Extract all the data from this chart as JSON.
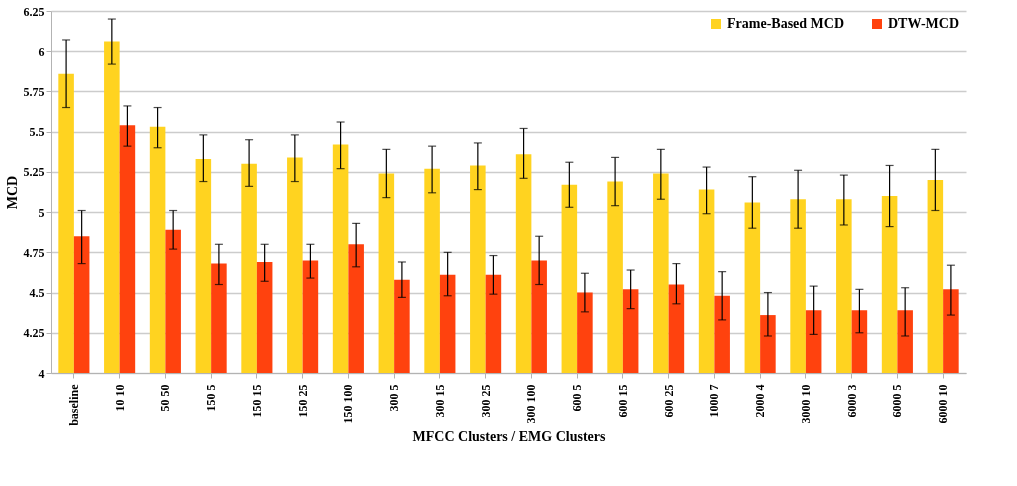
{
  "chart_data": {
    "type": "bar",
    "xlabel": "MFCC Clusters / EMG Clusters",
    "ylabel": "MCD",
    "categories": [
      "baseline",
      "10 10",
      "50 50",
      "150 5",
      "150 15",
      "150 25",
      "150 100",
      "300 5",
      "300 15",
      "300 25",
      "300 100",
      "600 5",
      "600 15",
      "600 25",
      "1000 7",
      "2000 4",
      "3000 10",
      "6000 3",
      "6000 5",
      "6000 10"
    ],
    "series": [
      {
        "name": "Frame-Based MCD",
        "color": "#ffd320",
        "values": [
          5.86,
          6.06,
          5.53,
          5.33,
          5.3,
          5.34,
          5.42,
          5.24,
          5.27,
          5.29,
          5.36,
          5.17,
          5.19,
          5.24,
          5.14,
          5.06,
          5.08,
          5.08,
          5.1,
          5.2
        ],
        "errors": [
          [
            5.65,
            6.07
          ],
          [
            5.92,
            6.2
          ],
          [
            5.4,
            5.65
          ],
          [
            5.19,
            5.48
          ],
          [
            5.16,
            5.45
          ],
          [
            5.19,
            5.48
          ],
          [
            5.27,
            5.56
          ],
          [
            5.09,
            5.39
          ],
          [
            5.12,
            5.41
          ],
          [
            5.14,
            5.43
          ],
          [
            5.21,
            5.52
          ],
          [
            5.03,
            5.31
          ],
          [
            5.04,
            5.34
          ],
          [
            5.08,
            5.39
          ],
          [
            4.99,
            5.28
          ],
          [
            4.9,
            5.22
          ],
          [
            4.9,
            5.26
          ],
          [
            4.92,
            5.23
          ],
          [
            4.91,
            5.29
          ],
          [
            5.01,
            5.39
          ]
        ]
      },
      {
        "name": "DTW-MCD",
        "color": "#ff420e",
        "values": [
          4.85,
          5.54,
          4.89,
          4.68,
          4.69,
          4.7,
          4.8,
          4.58,
          4.61,
          4.61,
          4.7,
          4.5,
          4.52,
          4.55,
          4.48,
          4.36,
          4.39,
          4.39,
          4.39,
          4.52
        ],
        "errors": [
          [
            4.68,
            5.01
          ],
          [
            5.41,
            5.66
          ],
          [
            4.77,
            5.01
          ],
          [
            4.55,
            4.8
          ],
          [
            4.57,
            4.8
          ],
          [
            4.59,
            4.8
          ],
          [
            4.66,
            4.93
          ],
          [
            4.47,
            4.69
          ],
          [
            4.48,
            4.75
          ],
          [
            4.49,
            4.73
          ],
          [
            4.55,
            4.85
          ],
          [
            4.38,
            4.62
          ],
          [
            4.4,
            4.64
          ],
          [
            4.43,
            4.68
          ],
          [
            4.33,
            4.63
          ],
          [
            4.23,
            4.5
          ],
          [
            4.24,
            4.54
          ],
          [
            4.25,
            4.52
          ],
          [
            4.23,
            4.53
          ],
          [
            4.36,
            4.67
          ]
        ]
      }
    ],
    "ylim": [
      4,
      6.25
    ],
    "yticks": [
      4,
      4.25,
      4.5,
      4.75,
      5,
      5.25,
      5.5,
      5.75,
      6,
      6.25
    ],
    "grid": "y",
    "legend": "top right"
  }
}
